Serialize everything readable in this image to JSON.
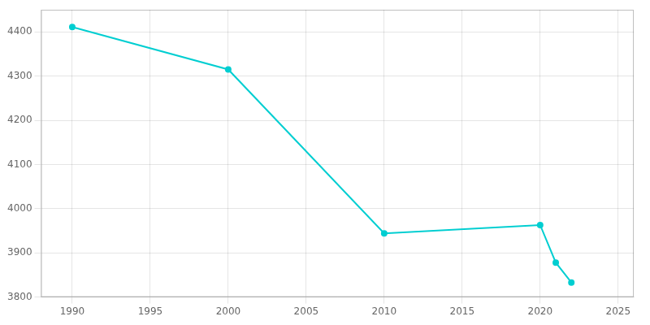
{
  "chart_data": {
    "type": "line",
    "x": [
      1990,
      2000,
      2010,
      2020,
      2021,
      2022
    ],
    "values": [
      4411,
      4315,
      3944,
      3963,
      3878,
      3833
    ],
    "color": "#00CED1",
    "marker": "o",
    "xlim": [
      1988,
      2026
    ],
    "ylim": [
      3800,
      4450
    ],
    "xticks": [
      1990,
      1995,
      2000,
      2005,
      2010,
      2015,
      2020,
      2025
    ],
    "yticks": [
      3800,
      3900,
      4000,
      4100,
      4200,
      4300,
      4400
    ],
    "grid": true
  }
}
